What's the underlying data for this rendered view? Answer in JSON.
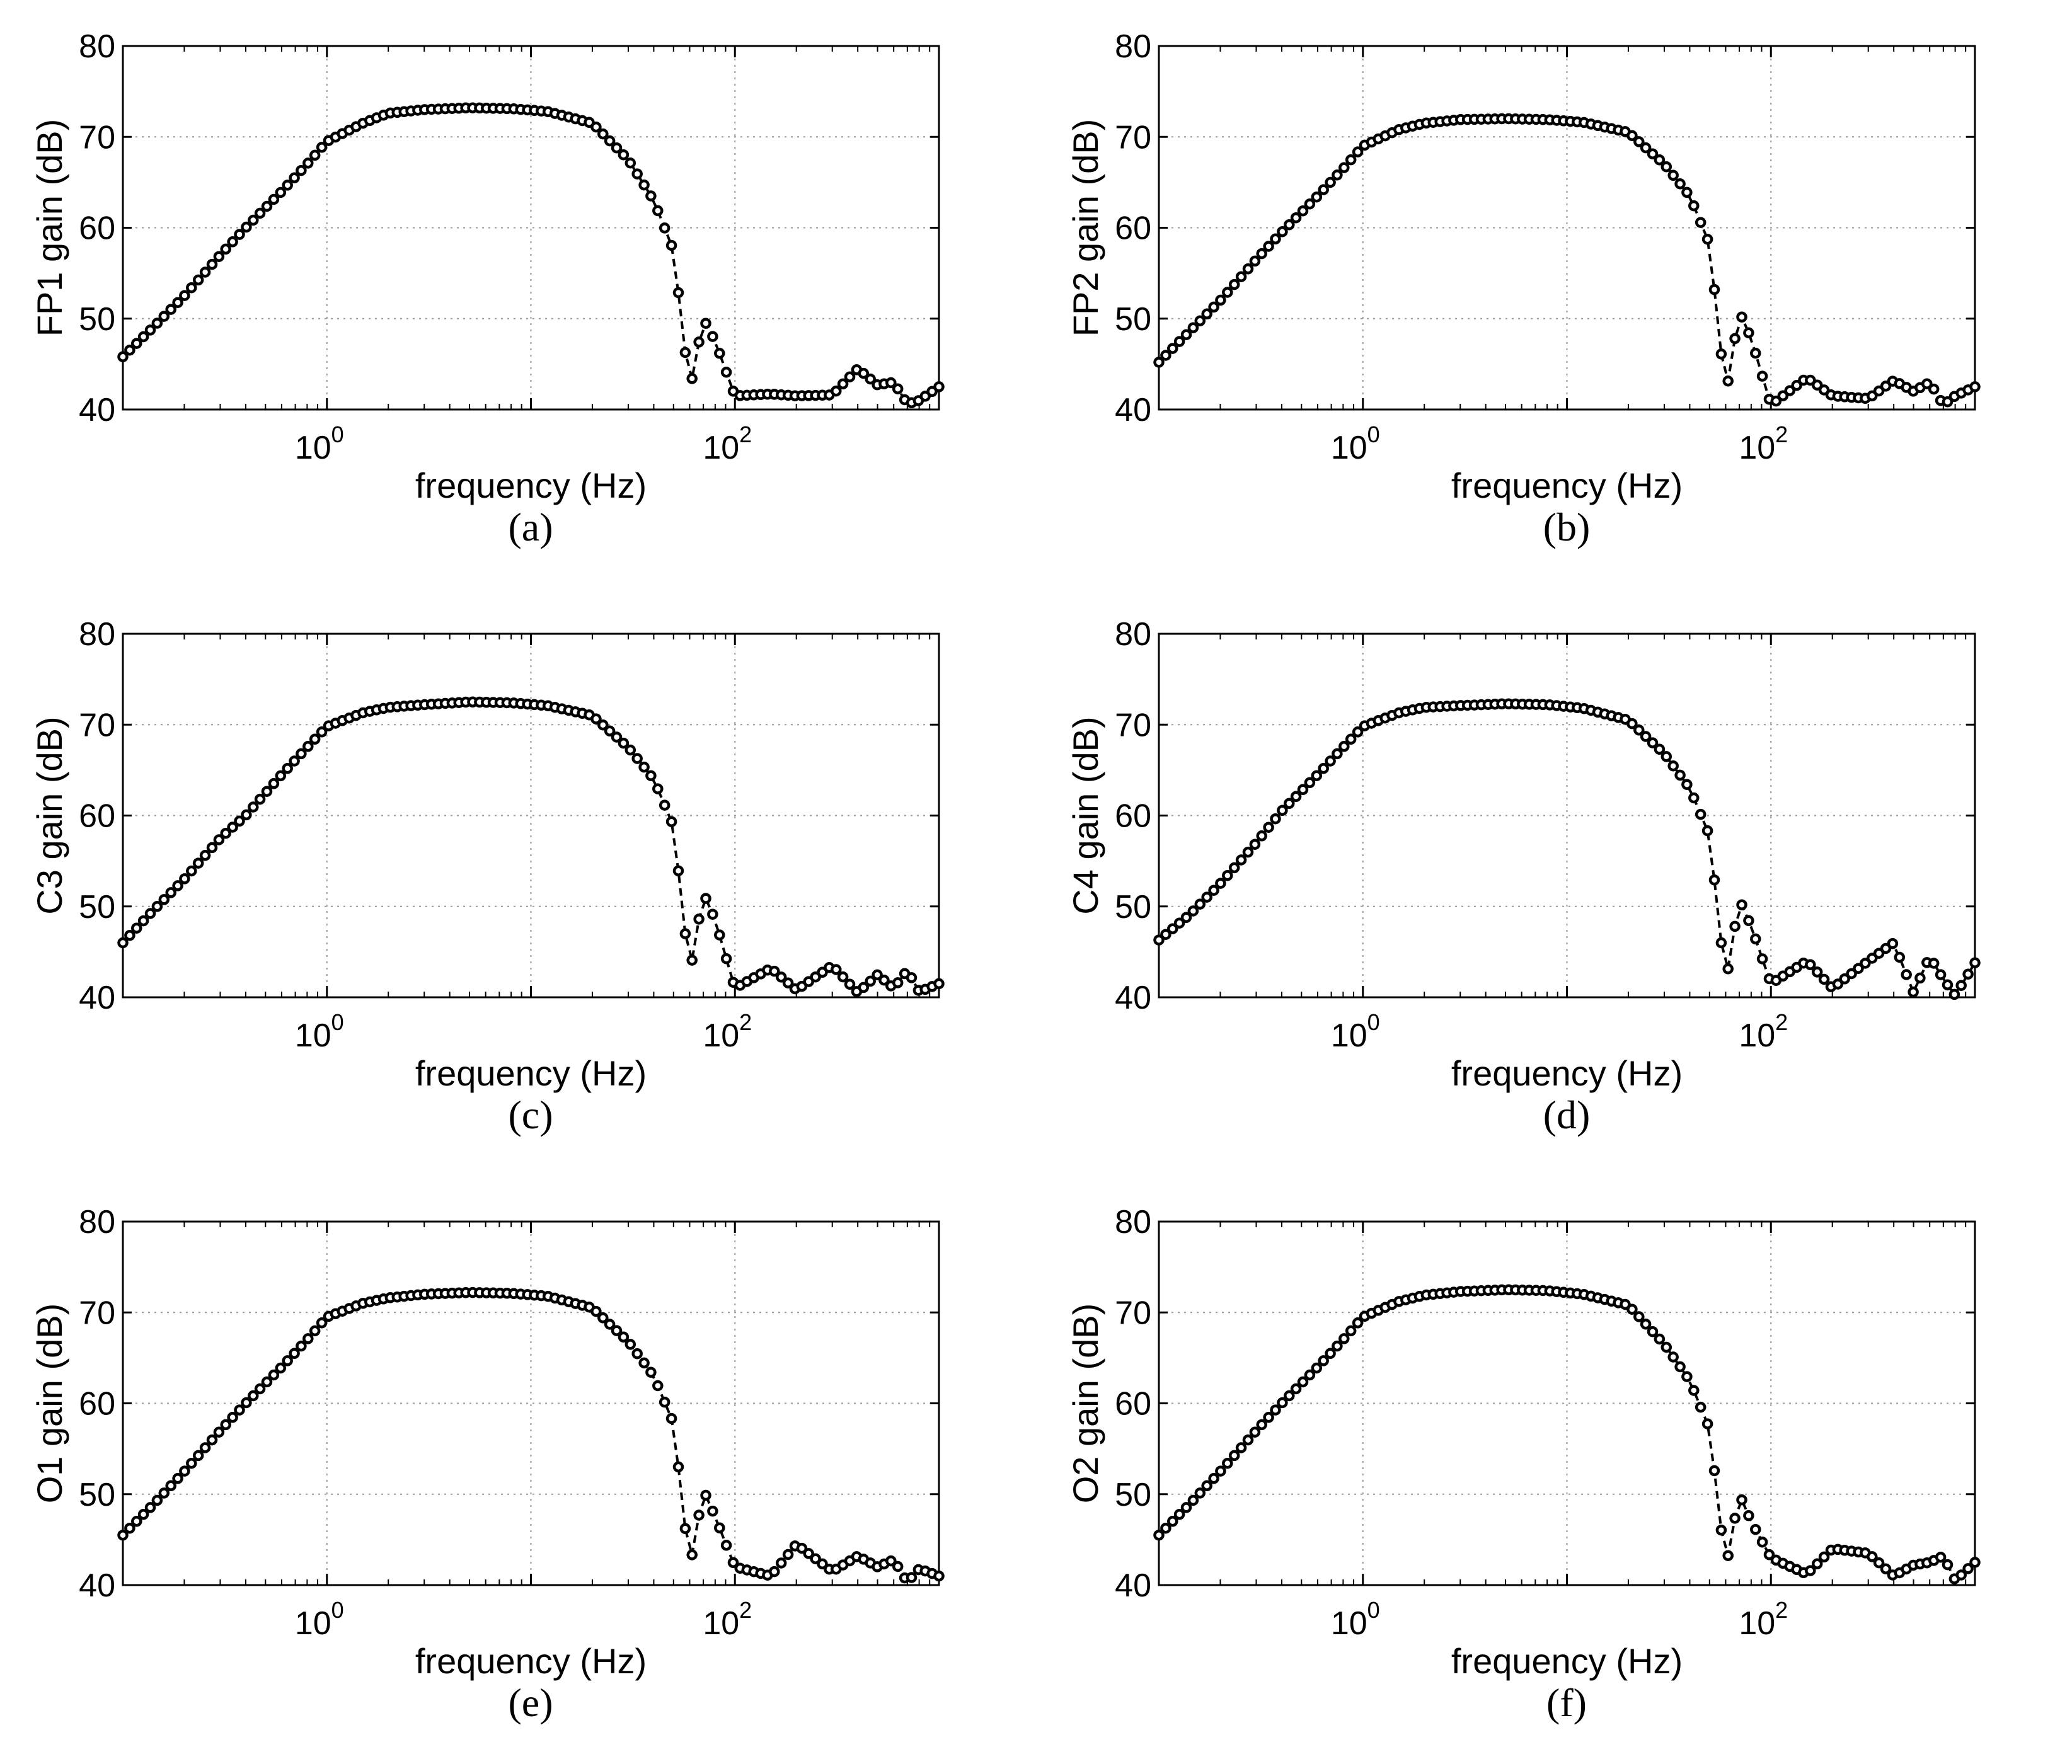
{
  "chart_data": [
    {
      "type": "line",
      "panel": "a",
      "caption": "(a)",
      "xlabel": "frequency (Hz)",
      "ylabel": "FP1 gain (dB)",
      "xscale": "log",
      "xlim": [
        0.1,
        1000
      ],
      "ylim": [
        40,
        80
      ],
      "xticks": [
        {
          "value": 1,
          "base": "10",
          "exp": "0"
        },
        {
          "value": 100,
          "base": "10",
          "exp": "2"
        }
      ],
      "yticks": [
        "40",
        "50",
        "60",
        "70",
        "80"
      ],
      "grid": true,
      "series": [
        {
          "name": "FP1",
          "x": [
            0.1,
            0.14,
            0.2,
            0.3,
            0.4,
            0.6,
            0.8,
            1,
            1.5,
            2,
            3,
            5,
            8,
            12,
            20,
            30,
            40,
            50,
            60,
            70,
            80,
            100,
            150,
            200,
            300,
            400,
            500,
            600,
            700,
            800,
            1000
          ],
          "values": [
            45.8,
            49.0,
            52.5,
            57.0,
            60.0,
            64.0,
            67.0,
            69.5,
            71.5,
            72.6,
            73.0,
            73.2,
            73.1,
            72.8,
            71.5,
            67.5,
            63.0,
            57.5,
            42.0,
            50.0,
            47.5,
            41.5,
            41.7,
            41.5,
            41.6,
            44.5,
            42.7,
            43.0,
            40.6,
            41.0,
            42.5
          ]
        }
      ]
    },
    {
      "type": "line",
      "panel": "b",
      "caption": "(b)",
      "xlabel": "frequency (Hz)",
      "ylabel": "FP2 gain (dB)",
      "xscale": "log",
      "xlim": [
        0.1,
        1000
      ],
      "ylim": [
        40,
        80
      ],
      "xticks": [
        {
          "value": 1,
          "base": "10",
          "exp": "0"
        },
        {
          "value": 100,
          "base": "10",
          "exp": "2"
        }
      ],
      "yticks": [
        "40",
        "50",
        "60",
        "70",
        "80"
      ],
      "grid": true,
      "series": [
        {
          "name": "FP2",
          "x": [
            0.1,
            0.14,
            0.2,
            0.3,
            0.4,
            0.6,
            0.8,
            1,
            1.5,
            2,
            3,
            5,
            8,
            12,
            20,
            30,
            40,
            50,
            60,
            70,
            80,
            100,
            150,
            200,
            300,
            400,
            500,
            600,
            700,
            800,
            1000
          ],
          "values": [
            45.2,
            48.5,
            52.0,
            56.5,
            59.5,
            63.5,
            66.5,
            69.0,
            70.8,
            71.5,
            71.9,
            72.0,
            71.9,
            71.6,
            70.5,
            67.0,
            63.5,
            58.2,
            41.5,
            50.8,
            47.8,
            40.5,
            43.5,
            41.5,
            41.2,
            43.2,
            42.0,
            43.0,
            40.5,
            41.5,
            42.5
          ]
        }
      ]
    },
    {
      "type": "line",
      "panel": "c",
      "caption": "(c)",
      "xlabel": "frequency (Hz)",
      "ylabel": "C3 gain (dB)",
      "xscale": "log",
      "xlim": [
        0.1,
        1000
      ],
      "ylim": [
        40,
        80
      ],
      "xticks": [
        {
          "value": 1,
          "base": "10",
          "exp": "0"
        },
        {
          "value": 100,
          "base": "10",
          "exp": "2"
        }
      ],
      "yticks": [
        "40",
        "50",
        "60",
        "70",
        "80"
      ],
      "grid": true,
      "series": [
        {
          "name": "C3",
          "x": [
            0.1,
            0.14,
            0.2,
            0.3,
            0.4,
            0.6,
            0.8,
            1,
            1.5,
            2,
            3,
            5,
            8,
            12,
            20,
            30,
            40,
            50,
            60,
            70,
            80,
            100,
            150,
            200,
            300,
            400,
            500,
            600,
            700,
            800,
            1000
          ],
          "values": [
            46.0,
            49.5,
            53.0,
            57.5,
            60.0,
            64.5,
            67.5,
            69.8,
            71.3,
            71.9,
            72.2,
            72.5,
            72.4,
            72.1,
            71.0,
            67.5,
            64.0,
            58.8,
            42.5,
            51.5,
            48.5,
            41.0,
            43.2,
            40.8,
            43.5,
            40.5,
            42.5,
            41.0,
            43.0,
            40.6,
            41.5
          ]
        }
      ]
    },
    {
      "type": "line",
      "panel": "d",
      "caption": "(d)",
      "xlabel": "frequency (Hz)",
      "ylabel": "C4 gain (dB)",
      "xscale": "log",
      "xlim": [
        0.1,
        1000
      ],
      "ylim": [
        40,
        80
      ],
      "xticks": [
        {
          "value": 1,
          "base": "10",
          "exp": "0"
        },
        {
          "value": 100,
          "base": "10",
          "exp": "2"
        }
      ],
      "yticks": [
        "40",
        "50",
        "60",
        "70",
        "80"
      ],
      "grid": true,
      "series": [
        {
          "name": "C4",
          "x": [
            0.1,
            0.14,
            0.2,
            0.3,
            0.4,
            0.6,
            0.8,
            1,
            1.5,
            2,
            3,
            5,
            8,
            12,
            20,
            30,
            40,
            50,
            60,
            70,
            80,
            100,
            150,
            200,
            300,
            400,
            500,
            600,
            700,
            800,
            1000
          ],
          "values": [
            46.3,
            49.0,
            52.5,
            57.0,
            60.5,
            64.5,
            67.5,
            69.8,
            71.3,
            71.9,
            72.1,
            72.3,
            72.2,
            71.8,
            70.5,
            66.8,
            63.0,
            57.8,
            41.5,
            50.8,
            47.8,
            41.5,
            44.0,
            41.0,
            44.0,
            46.0,
            40.5,
            44.5,
            42.0,
            40.2,
            43.8
          ]
        }
      ]
    },
    {
      "type": "line",
      "panel": "e",
      "caption": "(e)",
      "xlabel": "frequency (Hz)",
      "ylabel": "O1 gain (dB)",
      "xscale": "log",
      "xlim": [
        0.1,
        1000
      ],
      "ylim": [
        40,
        80
      ],
      "xticks": [
        {
          "value": 1,
          "base": "10",
          "exp": "0"
        },
        {
          "value": 100,
          "base": "10",
          "exp": "2"
        }
      ],
      "yticks": [
        "40",
        "50",
        "60",
        "70",
        "80"
      ],
      "grid": true,
      "series": [
        {
          "name": "O1",
          "x": [
            0.1,
            0.14,
            0.2,
            0.3,
            0.4,
            0.6,
            0.8,
            1,
            1.5,
            2,
            3,
            5,
            8,
            12,
            20,
            30,
            40,
            50,
            60,
            70,
            80,
            100,
            150,
            200,
            300,
            400,
            500,
            600,
            700,
            800,
            1000
          ],
          "values": [
            45.5,
            48.8,
            52.5,
            57.0,
            60.0,
            64.0,
            67.0,
            69.5,
            71.0,
            71.6,
            72.0,
            72.2,
            72.1,
            71.8,
            70.5,
            66.8,
            63.0,
            57.8,
            41.8,
            50.5,
            47.5,
            42.0,
            41.0,
            44.5,
            41.5,
            43.2,
            42.0,
            42.8,
            40.3,
            41.8,
            41.0
          ]
        }
      ]
    },
    {
      "type": "line",
      "panel": "f",
      "caption": "(f)",
      "xlabel": "frequency (Hz)",
      "ylabel": "O2 gain (dB)",
      "xscale": "log",
      "xlim": [
        0.1,
        1000
      ],
      "ylim": [
        40,
        80
      ],
      "xticks": [
        {
          "value": 1,
          "base": "10",
          "exp": "0"
        },
        {
          "value": 100,
          "base": "10",
          "exp": "2"
        }
      ],
      "yticks": [
        "40",
        "50",
        "60",
        "70",
        "80"
      ],
      "grid": true,
      "series": [
        {
          "name": "O2",
          "x": [
            0.1,
            0.14,
            0.2,
            0.3,
            0.4,
            0.6,
            0.8,
            1,
            1.5,
            2,
            3,
            5,
            8,
            12,
            20,
            30,
            40,
            50,
            60,
            70,
            80,
            100,
            150,
            200,
            300,
            400,
            500,
            600,
            700,
            800,
            1000
          ],
          "values": [
            45.5,
            48.8,
            52.5,
            57.0,
            60.0,
            64.0,
            67.0,
            69.5,
            71.2,
            71.9,
            72.3,
            72.5,
            72.4,
            72.0,
            70.8,
            66.5,
            62.5,
            57.2,
            41.8,
            50.0,
            47.0,
            43.0,
            41.2,
            44.0,
            43.5,
            41.0,
            42.2,
            42.5,
            43.2,
            40.5,
            42.5
          ]
        }
      ]
    }
  ]
}
